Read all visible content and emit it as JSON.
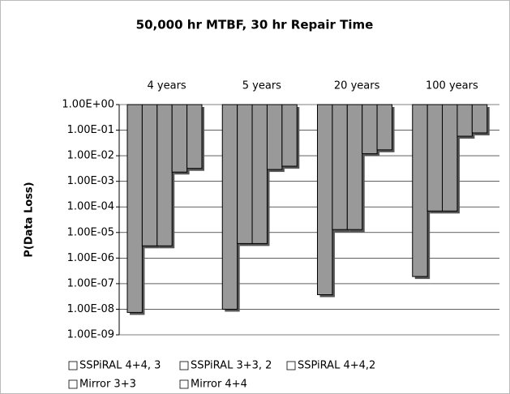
{
  "chart_data": {
    "type": "bar",
    "title": "50,000 hr MTBF, 30 hr Repair Time",
    "y_label": "P(Data Loss)",
    "categories": [
      "4 years",
      "5 years",
      "20 years",
      "100 years"
    ],
    "log_y": true,
    "grid": true,
    "ylim": [
      1e-09,
      1
    ],
    "yticks": [
      {
        "value": 1,
        "label": "1.00E+00"
      },
      {
        "value": 0.1,
        "label": "1.00E-01"
      },
      {
        "value": 0.01,
        "label": "1.00E-02"
      },
      {
        "value": 0.001,
        "label": "1.00E-03"
      },
      {
        "value": 0.0001,
        "label": "1.00E-04"
      },
      {
        "value": 1e-05,
        "label": "1.00E-05"
      },
      {
        "value": 1e-06,
        "label": "1.00E-06"
      },
      {
        "value": 1e-07,
        "label": "1.00E-07"
      },
      {
        "value": 1e-08,
        "label": "1.00E-08"
      },
      {
        "value": 1e-09,
        "label": "1.00E-09"
      }
    ],
    "series": [
      {
        "name": "SSPiRAL 4+4, 3",
        "color": "#999999",
        "values": [
          7.5e-09,
          1e-08,
          3.7e-08,
          1.9e-07
        ]
      },
      {
        "name": "SSPiRAL 3+3, 2",
        "color": "#999999",
        "values": [
          3e-06,
          3.7e-06,
          1.3e-05,
          6.9e-05
        ]
      },
      {
        "name": "SSPiRAL 4+4,2",
        "color": "#999999",
        "values": [
          3e-06,
          3.7e-06,
          1.3e-05,
          6.9e-05
        ]
      },
      {
        "name": "Mirror 3+3",
        "color": "#999999",
        "values": [
          0.0023,
          0.0029,
          0.012,
          0.058
        ]
      },
      {
        "name": "Mirror 4+4",
        "color": "#999999",
        "values": [
          0.0032,
          0.0039,
          0.017,
          0.078
        ]
      }
    ]
  }
}
